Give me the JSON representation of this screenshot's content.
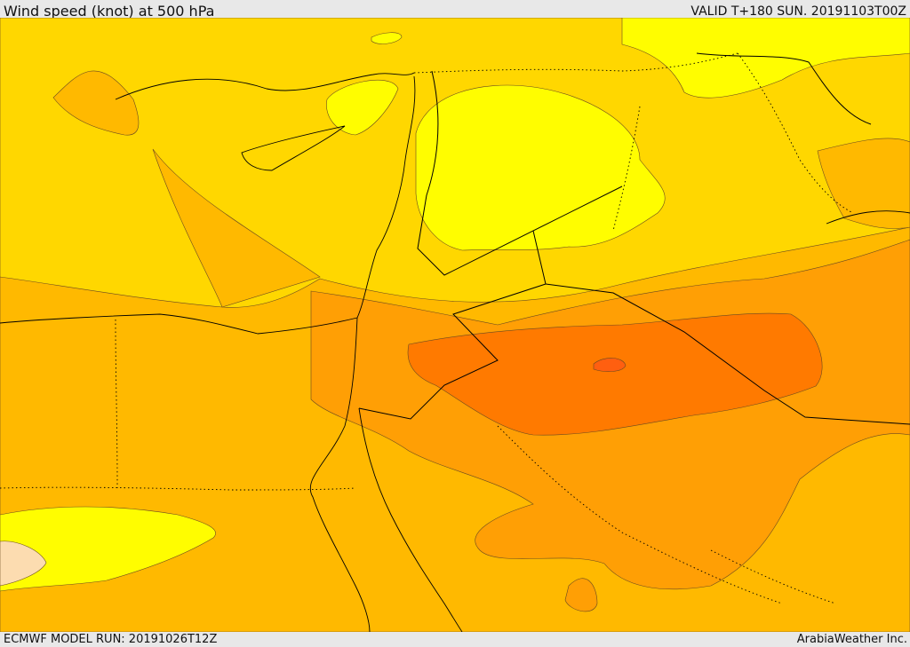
{
  "header": {
    "title": "Wind speed (knot) at 500 hPa",
    "valid": "VALID T+180 SUN. 20191103T00Z"
  },
  "footer": {
    "model_run": "ECMWF MODEL RUN: 20191026T12Z",
    "credit": "ArabiaWeather Inc."
  },
  "map": {
    "fill_colors": {
      "band_pale": "#fffd00",
      "band_yellow": "#ffd700",
      "band_amber": "#ffb900",
      "band_orange": "#ff9f05",
      "band_deep_orange": "#ff7a00",
      "band_red_orange": "#ff5f10",
      "band_peach": "#fcdcb0"
    },
    "border_color": "#000000"
  }
}
